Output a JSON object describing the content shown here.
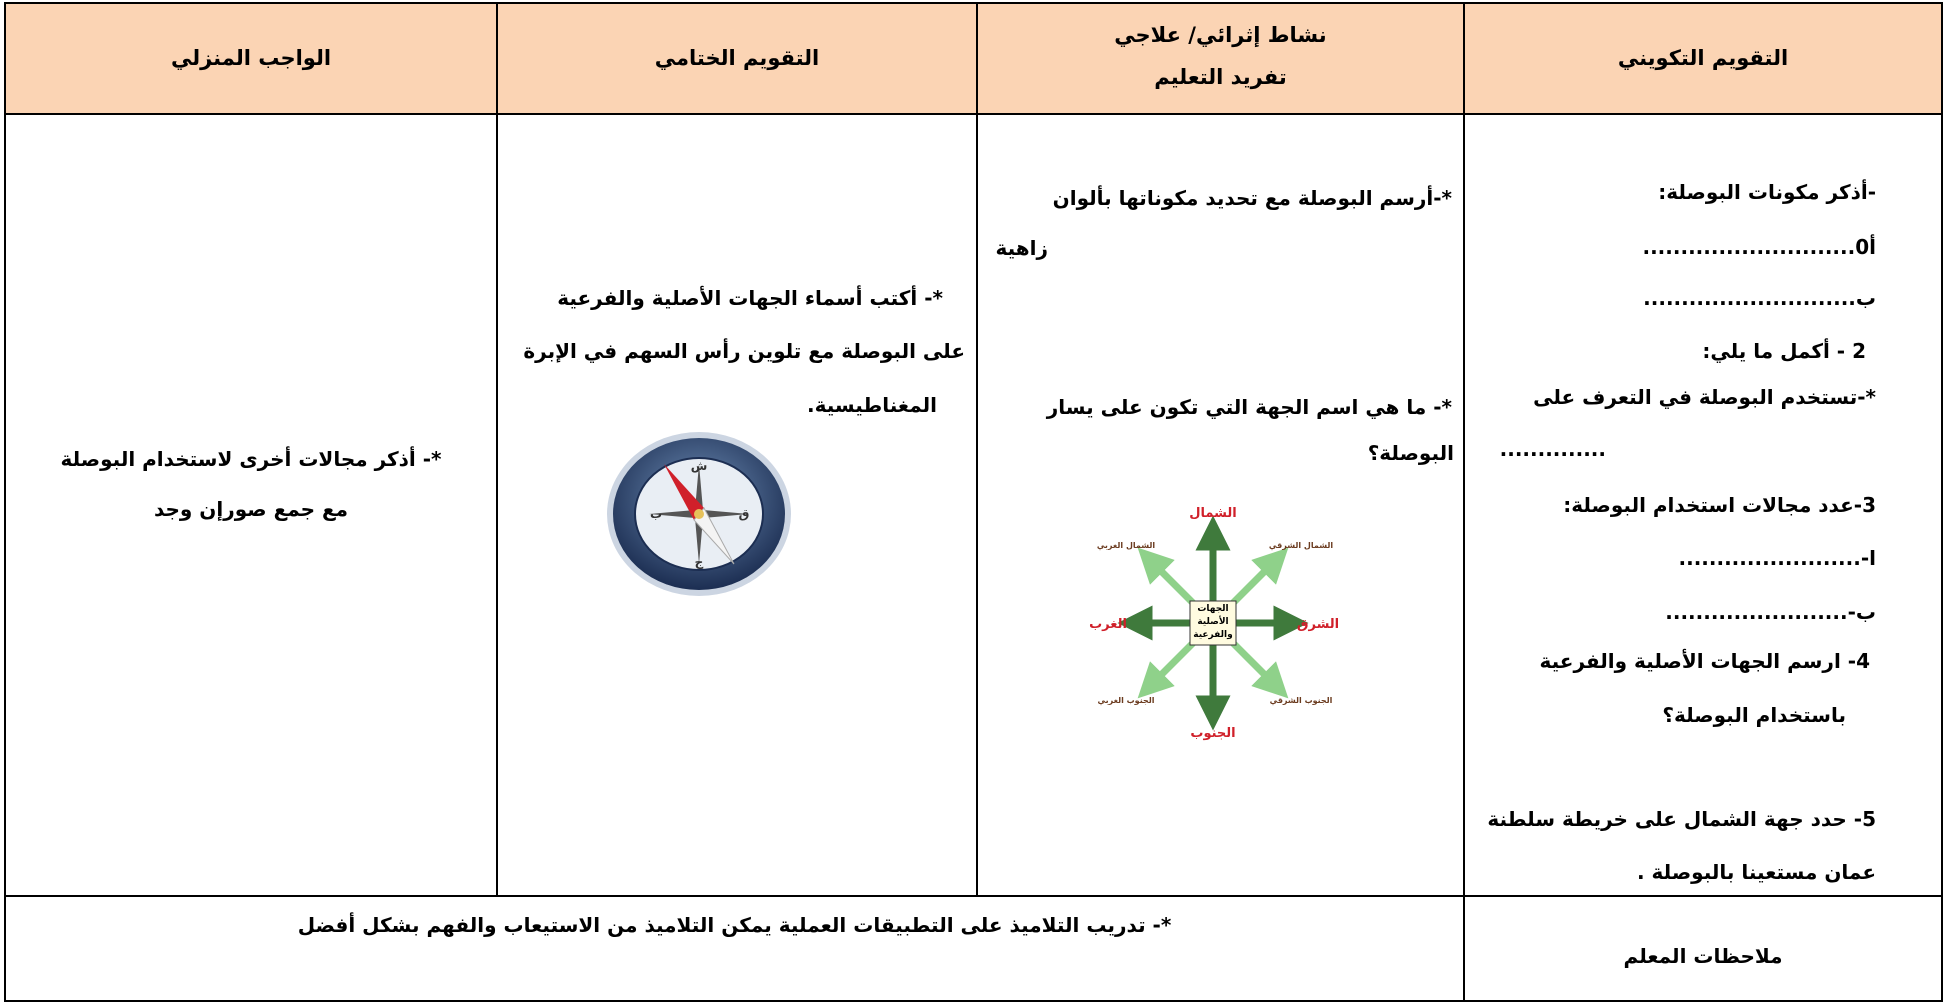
{
  "table": {
    "headers": [
      [
        "التقويم التكويني"
      ],
      [
        "نشاط إثرائي/ علاجي",
        "تفريد التعليم"
      ],
      [
        "التقويم الختامي"
      ],
      [
        "الواجب المنزلي"
      ]
    ],
    "body": [
      [
        "-أذكر مكونات البوصلة:",
        "أ0............................",
        "ب............................",
        "2 - أكمل ما يلي:",
        "*-تستخدم البوصلة في التعرف على",
        "..............",
        "3-عدد مجالات استخدام البوصلة:",
        "ا-........................",
        "ب-........................",
        "4- ارسم الجهات الأصلية والفرعية",
        "باستخدام البوصلة؟",
        "5- حدد جهة الشمال على خريطة سلطنة",
        "عمان مستعينا بالبوصلة ."
      ],
      [
        "*-أرسم البوصلة مع تحديد مكوناتها بألوان",
        "زاهية",
        "*- ما هي اسم الجهة التي تكون على يسار",
        "البوصلة؟"
      ],
      [
        "*- أكتب أسماء الجهات الأصلية والفرعية",
        "على البوصلة مع تلوين رأس السهم في الإبرة",
        "المغناطيسية."
      ],
      [
        "*- أذكر مجالات أخرى لاستخدام البوصلة",
        "مع جمع صورإن وجد"
      ]
    ],
    "footer": {
      "label": "ملاحظات المعلم",
      "text": "*- تدريب التلاميذ على التطبيقات العملية يمكن التلاميذ من الاستيعاب والفهم بشكل أفضل"
    }
  },
  "diagram": {
    "north": "الشمال",
    "south": "الجنوب",
    "east": "الشرق",
    "west": "الغرب",
    "northeast": "الشمال الشرقي",
    "northwest": "الشمال الغربي",
    "southeast": "الجنوب الشرقي",
    "southwest": "الجنوب الغربي",
    "center": [
      "الجهات",
      "الأصلية",
      "والفرعية"
    ]
  },
  "compass": {
    "north": "ش",
    "east": "ق",
    "south": "ج",
    "west": "ب"
  }
}
